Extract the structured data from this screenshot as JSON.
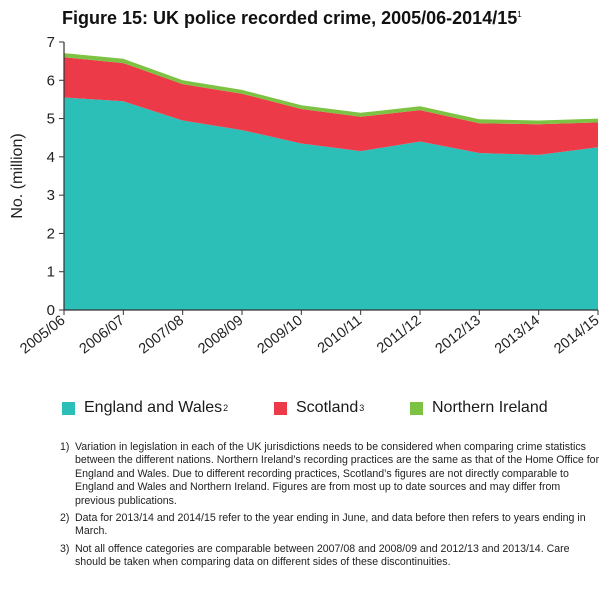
{
  "title_text": "Figure 15: UK police recorded crime, 2005/06-2014/15",
  "title_sup": "1",
  "chart_data": {
    "type": "area",
    "stacked": true,
    "title": "Figure 15: UK police recorded crime, 2005/06-2014/15",
    "xlabel": "",
    "ylabel": "No. (million)",
    "ylim": [
      0,
      7
    ],
    "yticks": [
      0,
      1,
      2,
      3,
      4,
      5,
      6,
      7
    ],
    "grid": false,
    "legend_position": "bottom",
    "categories": [
      "2005/06",
      "2006/07",
      "2007/08",
      "2008/09",
      "2009/10",
      "2010/11",
      "2011/12",
      "2012/13",
      "2013/14",
      "2014/15"
    ],
    "series": [
      {
        "name": "England and Wales",
        "color": "#2bbfb7",
        "values": [
          5.55,
          5.45,
          4.95,
          4.7,
          4.35,
          4.15,
          4.4,
          4.1,
          4.05,
          4.25
        ]
      },
      {
        "name": "Scotland",
        "color": "#ec3a48",
        "values": [
          1.05,
          1.0,
          0.95,
          0.95,
          0.9,
          0.9,
          0.82,
          0.78,
          0.8,
          0.65
        ]
      },
      {
        "name": "Northern Ireland",
        "color": "#7dc242",
        "values": [
          0.11,
          0.11,
          0.1,
          0.1,
          0.1,
          0.1,
          0.1,
          0.1,
          0.1,
          0.1
        ]
      }
    ]
  },
  "legend": [
    {
      "label": "England and Wales",
      "sup": "2",
      "color": "#2bbfb7"
    },
    {
      "label": "Scotland",
      "sup": "3",
      "color": "#ec3a48"
    },
    {
      "label": "Northern Ireland",
      "sup": "",
      "color": "#7dc242"
    }
  ],
  "notes": [
    {
      "num": "1)",
      "text": "Variation in legislation in each of the UK jurisdictions needs to be considered when comparing crime statistics between the different nations. Northern Ireland’s recording practices are the same as that of the Home Office for England and Wales. Due to different recording practices, Scotland’s figures are not directly comparable to England and Wales and Northern Ireland. Figures are from most up to date sources and may differ from previous publications."
    },
    {
      "num": "2)",
      "text": "Data for 2013/14 and 2014/15 refer to the year ending in June, and data before then refers to years ending in March."
    },
    {
      "num": "3)",
      "text": "Not all offence categories are comparable between 2007/08 and 2008/09 and 2012/13 and 2013/14. Care should be taken when comparing data on different sides of these discontinuities."
    }
  ]
}
